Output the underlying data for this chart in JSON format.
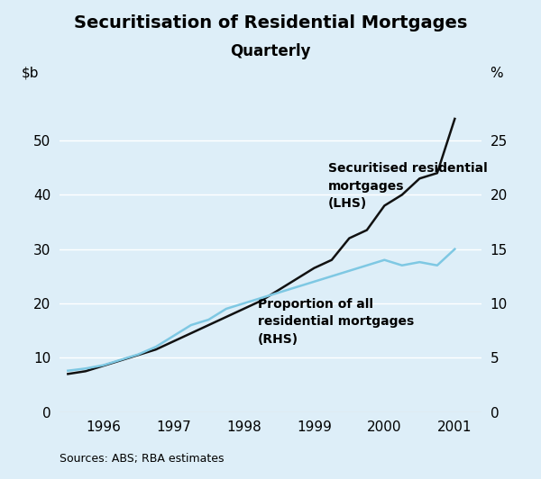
{
  "title_line1": "Securitisation of Residential Mortgages",
  "title_line2": "Quarterly",
  "ylabel_right": "%",
  "source": "Sources: ABS; RBA estimates",
  "bg_color": "#ddeef8",
  "lhs_color": "#111111",
  "rhs_color": "#7ec8e3",
  "ylim_left": [
    0,
    60
  ],
  "ylim_right": [
    0,
    30
  ],
  "yticks_left": [
    0,
    10,
    20,
    30,
    40,
    50
  ],
  "yticks_right": [
    0,
    5,
    10,
    15,
    20,
    25
  ],
  "xtick_labels": [
    "1996",
    "1997",
    "1998",
    "1999",
    "2000",
    "2001"
  ],
  "lhs_label": "Securitised residential\nmortgages\n(LHS)",
  "rhs_label": "Proportion of all\nresidential mortgages\n(RHS)",
  "x_numeric": [
    -0.5,
    -0.25,
    0.0,
    0.25,
    0.5,
    0.75,
    1.0,
    1.25,
    1.5,
    1.75,
    2.0,
    2.25,
    2.5,
    2.75,
    3.0,
    3.25,
    3.5,
    3.75,
    4.0,
    4.25,
    4.5,
    4.75,
    5.0
  ],
  "lhs_values": [
    7.0,
    7.5,
    8.5,
    9.5,
    10.5,
    11.5,
    13.0,
    14.5,
    16.0,
    17.5,
    19.0,
    20.5,
    22.5,
    24.5,
    26.5,
    28.0,
    32.0,
    33.5,
    38.0,
    40.0,
    43.0,
    44.0,
    54.0
  ],
  "rhs_values": [
    3.8,
    4.0,
    4.3,
    4.8,
    5.3,
    6.0,
    7.0,
    8.0,
    8.5,
    9.5,
    10.0,
    10.5,
    11.0,
    11.5,
    12.0,
    12.5,
    13.0,
    13.5,
    14.0,
    13.5,
    13.8,
    13.5,
    15.0
  ],
  "title_fontsize": 14,
  "subtitle_fontsize": 12,
  "tick_fontsize": 11,
  "annotation_fontsize": 10,
  "source_fontsize": 9
}
